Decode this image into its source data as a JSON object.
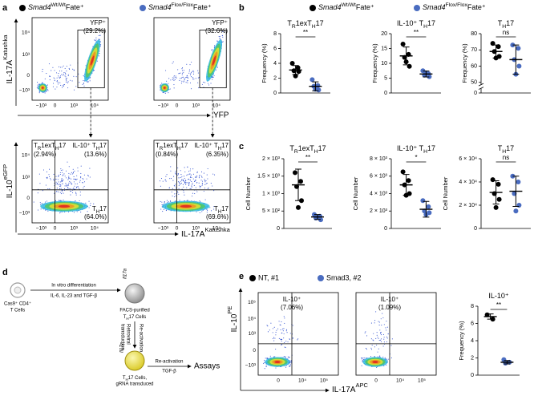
{
  "panel_labels": [
    "a",
    "b",
    "c",
    "d",
    "e"
  ],
  "legend": [
    {
      "parts": [
        "Smad4",
        "Wt/Wt",
        "Fate⁺"
      ],
      "color": "#000000"
    },
    {
      "parts": [
        "Smad4",
        "Flox/Flox",
        "Fate⁺"
      ],
      "color": "#4a6cc0"
    }
  ],
  "panel_a": {
    "top_ylabel": [
      "IL-17A",
      "Katushka"
    ],
    "top_xlabel": "YFP",
    "bottom_ylabel": [
      "IL-10",
      "eGFP"
    ],
    "bottom_xlabel": [
      "IL-17A",
      "Katushka"
    ],
    "axis_ticks": [
      "−10³",
      "0",
      "10³",
      "10⁴"
    ],
    "top_plots": [
      {
        "gate": "YFP⁺",
        "pct": "(29.2%)"
      },
      {
        "gate": "YFP⁺",
        "pct": "(32.6%)"
      }
    ],
    "bottom_plots": [
      {
        "q1": [
          "T",
          "R",
          "1exT",
          "H",
          "17"
        ],
        "q1_pct": "(2.94%)",
        "q2": [
          "IL-10⁺ T",
          "H",
          "17"
        ],
        "q2_pct": "(13.6%)",
        "q4": [
          "T",
          "H",
          "17"
        ],
        "q4_pct": "(64.0%)"
      },
      {
        "q1": [
          "T",
          "R",
          "1exT",
          "H",
          "17"
        ],
        "q1_pct": "(0.84%)",
        "q2": [
          "IL-10⁺ T",
          "H",
          "17"
        ],
        "q2_pct": "(6.35%)",
        "q4": [
          "T",
          "H",
          "17"
        ],
        "q4_pct": "(69.6%)"
      }
    ]
  },
  "panel_d": {
    "cell1": [
      "Cas9⁺ CD4⁺",
      "T Cells"
    ],
    "step1": [
      "In vitro differentiation",
      "IL-6, IL-23 and TGF-β"
    ],
    "gene": "Il17a",
    "cell2_line1": "FACS-purified",
    "cell2_line2": [
      "T",
      "H",
      "17 Cells"
    ],
    "step2": [
      "Re-activation",
      "Retroviral",
      "transduction"
    ],
    "cell3_line1": [
      "T",
      "H",
      "17 Cells,"
    ],
    "cell3_line2": "gRNA transduced",
    "step3": [
      "Re-activation",
      "TGF-β"
    ],
    "result": "Assays"
  },
  "panel_e": {
    "legend": [
      {
        "name": "NT, #1",
        "color": "#000000"
      },
      {
        "name": "Smad3, #2",
        "color": "#4a6cc0"
      }
    ],
    "ylabel": [
      "IL-10",
      "PE"
    ],
    "xlabel": [
      "IL-17A",
      "APC"
    ],
    "yticks": [
      "−10³",
      "0",
      "10³",
      "10⁴",
      "10⁵"
    ],
    "xticks": [
      "0",
      "10⁴",
      "10⁵"
    ],
    "plots": [
      {
        "gate": "IL-10⁺",
        "pct": "(7.06%)"
      },
      {
        "gate": "IL-10⁺",
        "pct": "(1.09%)"
      }
    ]
  },
  "chart_data": [
    {
      "type": "dot",
      "title": [
        "T",
        "R",
        "1exT",
        "H",
        "17"
      ],
      "ylabel": "Frequency (%)",
      "ylim": [
        0,
        8
      ],
      "yticks": [
        0,
        2,
        4,
        6,
        8
      ],
      "significance": "**",
      "series": [
        {
          "color": "#000000",
          "values": [
            4.0,
            3.4,
            3.0,
            2.9,
            2.3
          ],
          "mean": 3.1,
          "sd": 0.6
        },
        {
          "color": "#4a6cc0",
          "values": [
            1.8,
            1.0,
            0.9,
            0.4,
            0.5
          ],
          "mean": 0.9,
          "sd": 0.6
        }
      ]
    },
    {
      "type": "dot",
      "title": [
        "IL-10⁺ T",
        "H",
        "17"
      ],
      "ylabel": "Frequency (%)",
      "ylim": [
        0,
        20
      ],
      "yticks": [
        0,
        5,
        10,
        15,
        20
      ],
      "significance": "**",
      "series": [
        {
          "color": "#000000",
          "values": [
            16.5,
            13.0,
            12.0,
            9.0,
            10.5
          ],
          "mean": 12.5,
          "sd": 3.0
        },
        {
          "color": "#4a6cc0",
          "values": [
            7.5,
            6.5,
            6.0,
            5.5,
            6.8
          ],
          "mean": 6.4,
          "sd": 1.0
        }
      ]
    },
    {
      "type": "dot",
      "title": [
        "T",
        "H",
        "17"
      ],
      "ylabel": "Frequency (%)",
      "ylim": [
        50,
        80
      ],
      "yticks": [
        0,
        50,
        60,
        70,
        80
      ],
      "axis_break": true,
      "significance": "ns",
      "series": [
        {
          "color": "#000000",
          "values": [
            74,
            72,
            69,
            66,
            65
          ],
          "mean": 69,
          "sd": 4
        },
        {
          "color": "#4a6cc0",
          "values": [
            73,
            71,
            64,
            60,
            55
          ],
          "mean": 64,
          "sd": 9
        }
      ]
    },
    {
      "type": "dot",
      "title": [
        "T",
        "R",
        "1exT",
        "H",
        "17"
      ],
      "ylabel": "Cell Number",
      "ylim": [
        0,
        2000
      ],
      "yticks": [
        0,
        {
          "value": 500,
          "label": "5 × 10²"
        },
        {
          "value": 1000,
          "label": "1 × 10³"
        },
        {
          "value": 1500,
          "label": "1.5 × 10³"
        },
        {
          "value": 2000,
          "label": "2 × 10³"
        }
      ],
      "significance": "**",
      "series": [
        {
          "color": "#000000",
          "values": [
            1600,
            1350,
            1200,
            800,
            600
          ],
          "mean": 1250,
          "sd": 450
        },
        {
          "color": "#4a6cc0",
          "values": [
            400,
            350,
            300,
            250,
            320
          ],
          "mean": 330,
          "sd": 70
        }
      ]
    },
    {
      "type": "dot",
      "title": [
        "IL-10⁺ T",
        "H",
        "17"
      ],
      "ylabel": "Cell Number",
      "ylim": [
        0,
        8000
      ],
      "yticks": [
        0,
        {
          "value": 2000,
          "label": "2 × 10³"
        },
        {
          "value": 4000,
          "label": "4 × 10³"
        },
        {
          "value": 6000,
          "label": "6 × 10³"
        },
        {
          "value": 8000,
          "label": "8 × 10³"
        }
      ],
      "significance": "*",
      "series": [
        {
          "color": "#000000",
          "values": [
            6500,
            5500,
            5000,
            4000,
            3800
          ],
          "mean": 5000,
          "sd": 1200
        },
        {
          "color": "#4a6cc0",
          "values": [
            3200,
            2500,
            2000,
            1800,
            1600
          ],
          "mean": 2200,
          "sd": 900
        }
      ]
    },
    {
      "type": "dot",
      "title": [
        "T",
        "H",
        "17"
      ],
      "ylabel": "Cell Number",
      "ylim": [
        0,
        60000
      ],
      "yticks": [
        0,
        {
          "value": 20000,
          "label": "2 × 10⁴"
        },
        {
          "value": 40000,
          "label": "4 × 10⁴"
        },
        {
          "value": 60000,
          "label": "6 × 10⁴"
        }
      ],
      "significance": "ns",
      "series": [
        {
          "color": "#000000",
          "values": [
            42000,
            38000,
            30000,
            25000,
            18000
          ],
          "mean": 31000,
          "sd": 10000
        },
        {
          "color": "#4a6cc0",
          "values": [
            45000,
            40000,
            30000,
            20000,
            15000
          ],
          "mean": 32000,
          "sd": 13000
        }
      ]
    },
    {
      "type": "dot",
      "title": [
        "IL-10⁺"
      ],
      "ylabel": "Frequency (%)",
      "ylim": [
        0,
        8
      ],
      "yticks": [
        0,
        2,
        4,
        6,
        8
      ],
      "significance": "**",
      "series": [
        {
          "color": "#000000",
          "values": [
            7.0,
            6.5
          ],
          "mean": 6.8,
          "sd": 0.3
        },
        {
          "color": "#4a6cc0",
          "values": [
            1.8,
            1.5,
            1.4
          ],
          "mean": 1.5,
          "sd": 0.2
        }
      ]
    }
  ]
}
